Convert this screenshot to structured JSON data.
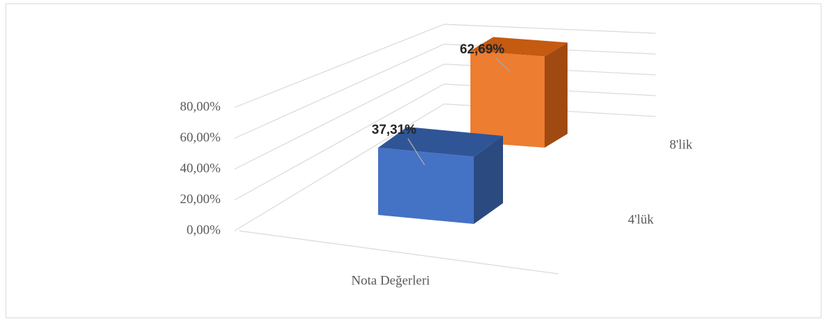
{
  "chart_data": {
    "type": "bar3d",
    "categories": [
      "Nota Değerleri"
    ],
    "series": [
      {
        "name": "4'lük",
        "color": "#4472c4",
        "values": [
          37.31
        ],
        "value_labels": [
          "37,31%"
        ]
      },
      {
        "name": "8'lik",
        "color": "#ed7d31",
        "values": [
          62.69
        ],
        "value_labels": [
          "62,69%"
        ]
      }
    ],
    "ylim": [
      0,
      80
    ],
    "yticks": [
      {
        "value": 0,
        "label": "0,00%"
      },
      {
        "value": 20,
        "label": "20,00%"
      },
      {
        "value": 40,
        "label": "40,00%"
      },
      {
        "value": 60,
        "label": "60,00%"
      },
      {
        "value": 80,
        "label": "80,00%"
      }
    ],
    "grid": true
  }
}
